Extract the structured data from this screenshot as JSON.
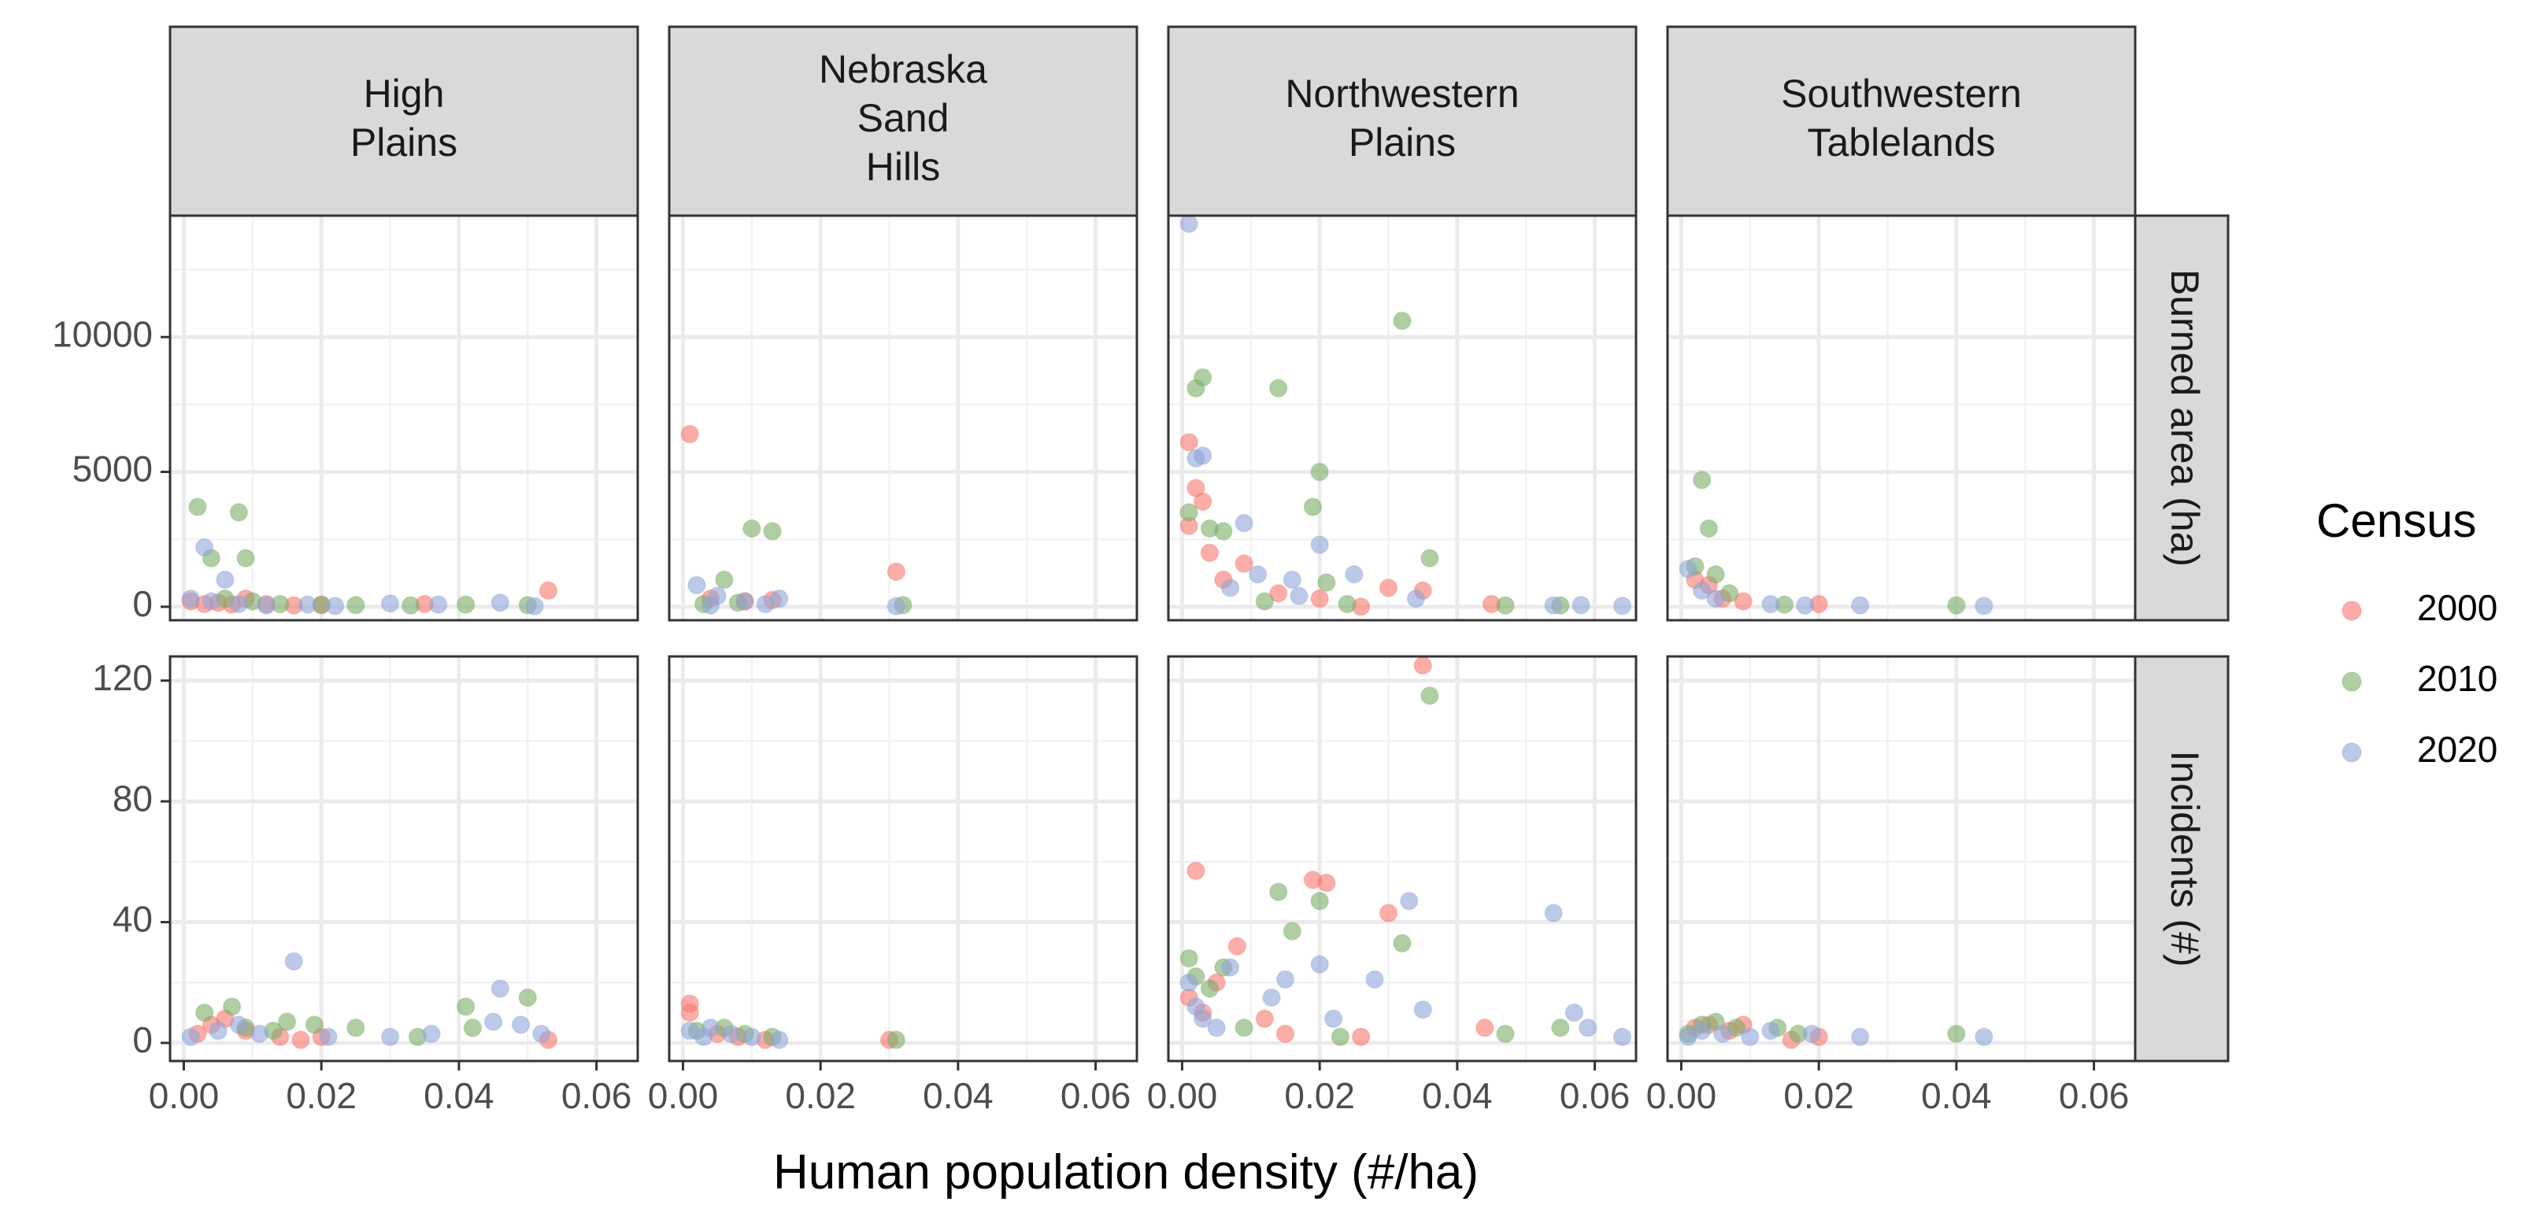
{
  "chart_data": {
    "type": "scatter",
    "title": "",
    "xlabel": "Human population density (#/ha)",
    "facet_columns": [
      "High\nPlains",
      "Nebraska\nSand\nHills",
      "Northwestern\nPlains",
      "Southwestern\nTablelands"
    ],
    "facet_rows": [
      "Burned area (ha)",
      "Incidents (#)"
    ],
    "xlim": [
      -0.002,
      0.066
    ],
    "x_ticks": [
      0.0,
      0.02,
      0.04,
      0.06
    ],
    "x_tick_labels": [
      "0.00",
      "0.02",
      "0.04",
      "0.06"
    ],
    "rows": [
      {
        "name": "Burned area (ha)",
        "ylim": [
          -500,
          14500
        ],
        "y_ticks": [
          0,
          5000,
          10000
        ],
        "y_tick_labels": [
          "0",
          "5000",
          "10000"
        ]
      },
      {
        "name": "Incidents (#)",
        "ylim": [
          -6,
          128
        ],
        "y_ticks": [
          0,
          40,
          80,
          120
        ],
        "y_tick_labels": [
          "0",
          "40",
          "80",
          "120"
        ]
      }
    ],
    "legend": {
      "title": "Census",
      "position": "right"
    },
    "series": [
      {
        "name": "2000",
        "color": "#f8766d"
      },
      {
        "name": "2010",
        "color": "#7cae67"
      },
      {
        "name": "2020",
        "color": "#8fa5d8"
      }
    ],
    "points": {
      "burned": {
        "High Plains": {
          "2000": [
            [
              0.001,
              200
            ],
            [
              0.003,
              100
            ],
            [
              0.005,
              150
            ],
            [
              0.007,
              80
            ],
            [
              0.009,
              300
            ],
            [
              0.012,
              100
            ],
            [
              0.016,
              50
            ],
            [
              0.02,
              60
            ],
            [
              0.035,
              100
            ],
            [
              0.053,
              600
            ]
          ],
          "2010": [
            [
              0.002,
              3700
            ],
            [
              0.008,
              3500
            ],
            [
              0.004,
              1800
            ],
            [
              0.009,
              1800
            ],
            [
              0.006,
              300
            ],
            [
              0.01,
              200
            ],
            [
              0.014,
              100
            ],
            [
              0.02,
              80
            ],
            [
              0.025,
              60
            ],
            [
              0.033,
              50
            ],
            [
              0.041,
              80
            ],
            [
              0.05,
              60
            ]
          ],
          "2020": [
            [
              0.003,
              2200
            ],
            [
              0.006,
              1000
            ],
            [
              0.001,
              300
            ],
            [
              0.004,
              200
            ],
            [
              0.008,
              100
            ],
            [
              0.012,
              50
            ],
            [
              0.018,
              80
            ],
            [
              0.022,
              30
            ],
            [
              0.03,
              120
            ],
            [
              0.037,
              80
            ],
            [
              0.046,
              150
            ],
            [
              0.051,
              20
            ]
          ]
        },
        "Nebraska Sand Hills": {
          "2000": [
            [
              0.001,
              6400
            ],
            [
              0.031,
              1300
            ],
            [
              0.004,
              300
            ],
            [
              0.009,
              200
            ],
            [
              0.013,
              250
            ]
          ],
          "2010": [
            [
              0.006,
              1000
            ],
            [
              0.01,
              2900
            ],
            [
              0.013,
              2800
            ],
            [
              0.032,
              60
            ],
            [
              0.008,
              150
            ],
            [
              0.003,
              100
            ]
          ],
          "2020": [
            [
              0.002,
              800
            ],
            [
              0.005,
              400
            ],
            [
              0.009,
              200
            ],
            [
              0.012,
              100
            ],
            [
              0.031,
              20
            ],
            [
              0.004,
              50
            ],
            [
              0.014,
              300
            ]
          ]
        },
        "Northwestern Plains": {
          "2000": [
            [
              0.001,
              6100
            ],
            [
              0.002,
              4400
            ],
            [
              0.003,
              3900
            ],
            [
              0.001,
              3000
            ],
            [
              0.004,
              2000
            ],
            [
              0.006,
              1000
            ],
            [
              0.009,
              1600
            ],
            [
              0.014,
              500
            ],
            [
              0.02,
              300
            ],
            [
              0.03,
              700
            ],
            [
              0.035,
              600
            ],
            [
              0.045,
              100
            ],
            [
              0.026,
              0
            ]
          ],
          "2010": [
            [
              0.002,
              8100
            ],
            [
              0.003,
              8500
            ],
            [
              0.014,
              8100
            ],
            [
              0.032,
              10600
            ],
            [
              0.02,
              5000
            ],
            [
              0.019,
              3700
            ],
            [
              0.001,
              3500
            ],
            [
              0.004,
              2900
            ],
            [
              0.006,
              2800
            ],
            [
              0.021,
              900
            ],
            [
              0.036,
              1800
            ],
            [
              0.047,
              50
            ],
            [
              0.055,
              50
            ],
            [
              0.012,
              200
            ],
            [
              0.024,
              100
            ]
          ],
          "2020": [
            [
              0.001,
              14200
            ],
            [
              0.002,
              5500
            ],
            [
              0.003,
              5600
            ],
            [
              0.009,
              3100
            ],
            [
              0.016,
              1000
            ],
            [
              0.02,
              2300
            ],
            [
              0.025,
              1200
            ],
            [
              0.034,
              300
            ],
            [
              0.054,
              50
            ],
            [
              0.058,
              60
            ],
            [
              0.064,
              30
            ],
            [
              0.007,
              700
            ],
            [
              0.011,
              1200
            ],
            [
              0.017,
              400
            ]
          ]
        },
        "Southwestern Tablelands": {
          "2000": [
            [
              0.002,
              1000
            ],
            [
              0.004,
              800
            ],
            [
              0.006,
              300
            ],
            [
              0.009,
              200
            ],
            [
              0.02,
              100
            ]
          ],
          "2010": [
            [
              0.003,
              4700
            ],
            [
              0.004,
              2900
            ],
            [
              0.002,
              1500
            ],
            [
              0.005,
              1200
            ],
            [
              0.007,
              500
            ],
            [
              0.015,
              80
            ],
            [
              0.04,
              50
            ]
          ],
          "2020": [
            [
              0.001,
              1400
            ],
            [
              0.003,
              600
            ],
            [
              0.005,
              300
            ],
            [
              0.013,
              100
            ],
            [
              0.018,
              50
            ],
            [
              0.026,
              50
            ],
            [
              0.044,
              30
            ]
          ]
        }
      },
      "incidents": {
        "High Plains": {
          "2000": [
            [
              0.002,
              3
            ],
            [
              0.004,
              6
            ],
            [
              0.006,
              8
            ],
            [
              0.009,
              4
            ],
            [
              0.014,
              2
            ],
            [
              0.017,
              1
            ],
            [
              0.02,
              2
            ],
            [
              0.053,
              1
            ]
          ],
          "2010": [
            [
              0.003,
              10
            ],
            [
              0.007,
              12
            ],
            [
              0.009,
              5
            ],
            [
              0.013,
              4
            ],
            [
              0.015,
              7
            ],
            [
              0.019,
              6
            ],
            [
              0.025,
              5
            ],
            [
              0.041,
              12
            ],
            [
              0.042,
              5
            ],
            [
              0.05,
              15
            ],
            [
              0.034,
              2
            ]
          ],
          "2020": [
            [
              0.001,
              2
            ],
            [
              0.005,
              4
            ],
            [
              0.008,
              6
            ],
            [
              0.011,
              3
            ],
            [
              0.016,
              27
            ],
            [
              0.021,
              2
            ],
            [
              0.03,
              2
            ],
            [
              0.036,
              3
            ],
            [
              0.045,
              7
            ],
            [
              0.046,
              18
            ],
            [
              0.049,
              6
            ],
            [
              0.052,
              3
            ]
          ]
        },
        "Nebraska Sand Hills": {
          "2000": [
            [
              0.001,
              13
            ],
            [
              0.001,
              10
            ],
            [
              0.005,
              3
            ],
            [
              0.008,
              2
            ],
            [
              0.012,
              1
            ],
            [
              0.03,
              1
            ]
          ],
          "2010": [
            [
              0.002,
              4
            ],
            [
              0.006,
              5
            ],
            [
              0.009,
              3
            ],
            [
              0.013,
              2
            ],
            [
              0.031,
              1
            ]
          ],
          "2020": [
            [
              0.001,
              4
            ],
            [
              0.003,
              2
            ],
            [
              0.004,
              5
            ],
            [
              0.007,
              3
            ],
            [
              0.01,
              2
            ],
            [
              0.014,
              1
            ]
          ]
        },
        "Northwestern Plains": {
          "2000": [
            [
              0.002,
              57
            ],
            [
              0.001,
              15
            ],
            [
              0.003,
              10
            ],
            [
              0.005,
              20
            ],
            [
              0.008,
              32
            ],
            [
              0.012,
              8
            ],
            [
              0.019,
              54
            ],
            [
              0.021,
              53
            ],
            [
              0.03,
              43
            ],
            [
              0.035,
              125
            ],
            [
              0.044,
              5
            ],
            [
              0.026,
              2
            ],
            [
              0.015,
              3
            ]
          ],
          "2010": [
            [
              0.001,
              28
            ],
            [
              0.002,
              22
            ],
            [
              0.004,
              18
            ],
            [
              0.006,
              25
            ],
            [
              0.009,
              5
            ],
            [
              0.014,
              50
            ],
            [
              0.016,
              37
            ],
            [
              0.02,
              47
            ],
            [
              0.032,
              33
            ],
            [
              0.036,
              115
            ],
            [
              0.047,
              3
            ],
            [
              0.055,
              5
            ],
            [
              0.023,
              2
            ]
          ],
          "2020": [
            [
              0.001,
              20
            ],
            [
              0.002,
              12
            ],
            [
              0.003,
              8
            ],
            [
              0.005,
              5
            ],
            [
              0.007,
              25
            ],
            [
              0.013,
              15
            ],
            [
              0.015,
              21
            ],
            [
              0.02,
              26
            ],
            [
              0.028,
              21
            ],
            [
              0.033,
              47
            ],
            [
              0.035,
              11
            ],
            [
              0.054,
              43
            ],
            [
              0.057,
              10
            ],
            [
              0.059,
              5
            ],
            [
              0.064,
              2
            ],
            [
              0.022,
              8
            ]
          ]
        },
        "Southwestern Tablelands": {
          "2000": [
            [
              0.002,
              5
            ],
            [
              0.004,
              6
            ],
            [
              0.007,
              4
            ],
            [
              0.009,
              6
            ],
            [
              0.016,
              1
            ],
            [
              0.02,
              2
            ]
          ],
          "2010": [
            [
              0.001,
              3
            ],
            [
              0.003,
              6
            ],
            [
              0.005,
              7
            ],
            [
              0.008,
              5
            ],
            [
              0.014,
              5
            ],
            [
              0.017,
              3
            ],
            [
              0.04,
              3
            ]
          ],
          "2020": [
            [
              0.001,
              2
            ],
            [
              0.003,
              4
            ],
            [
              0.006,
              3
            ],
            [
              0.01,
              2
            ],
            [
              0.013,
              4
            ],
            [
              0.019,
              3
            ],
            [
              0.026,
              2
            ],
            [
              0.044,
              2
            ]
          ]
        }
      }
    }
  }
}
